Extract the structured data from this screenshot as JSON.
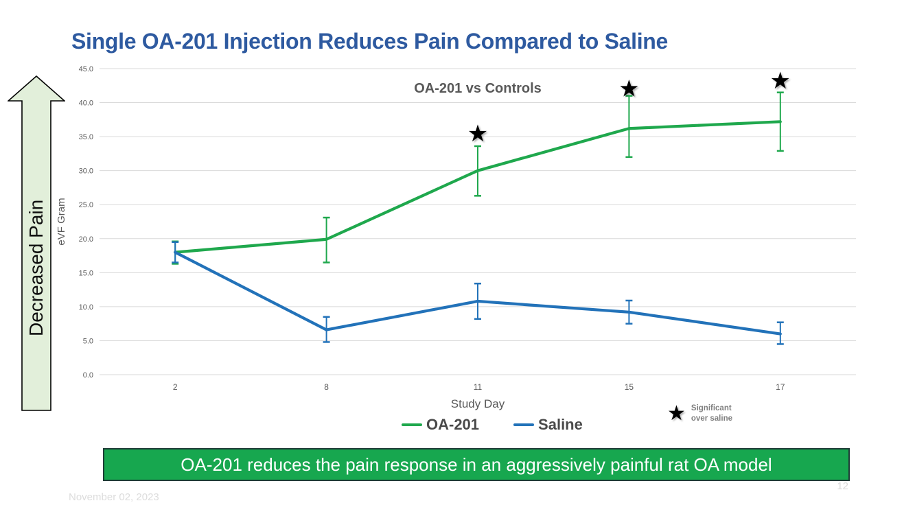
{
  "slide": {
    "title": "Single OA-201 Injection Reduces Pain Compared to Saline",
    "arrow_label": "Decreased Pain",
    "banner_text": "OA-201 reduces the pain response in an aggressively painful rat OA model",
    "date": "November 02, 2023",
    "page_number": "12"
  },
  "colors": {
    "title_text": "#2E5AA0",
    "oa201_green": "#1FA84D",
    "saline_blue": "#2272B9",
    "banner_bg": "#17A74F",
    "banner_border": "#1E3B36",
    "arrow_fill": "#E2EFDA",
    "arrow_border": "#000000",
    "gridline": "#D9D9D9",
    "axis_text": "#595959",
    "legend_text": "#4A4A4A",
    "footer_text": "#DCDCDC",
    "star": "#000000"
  },
  "chart_data": {
    "type": "line",
    "title": "OA-201 vs Controls",
    "xlabel": "Study Day",
    "ylabel": "eVF Gram",
    "categories": [
      2,
      8,
      11,
      15,
      17
    ],
    "ylim": [
      0,
      45
    ],
    "ytick_step": 5,
    "grid": true,
    "legend_position": "bottom",
    "series": [
      {
        "name": "OA-201",
        "color": "#1FA84D",
        "values": [
          18.0,
          19.9,
          30.0,
          36.2,
          37.2
        ],
        "err_low": [
          16.3,
          16.5,
          26.3,
          32.0,
          32.9
        ],
        "err_high": [
          19.6,
          23.1,
          33.6,
          41.0,
          41.5
        ]
      },
      {
        "name": "Saline",
        "color": "#2272B9",
        "values": [
          18.0,
          6.6,
          10.8,
          9.2,
          6.0
        ],
        "err_low": [
          16.5,
          4.8,
          8.2,
          7.5,
          4.5
        ],
        "err_high": [
          19.5,
          8.5,
          13.4,
          10.9,
          7.7
        ]
      }
    ],
    "significance": {
      "marker": "★",
      "days": [
        11,
        15,
        17
      ],
      "marker_y": [
        35.4,
        42.0,
        43.2
      ],
      "label_line1": "Significant",
      "label_line2": "over saline"
    }
  },
  "legend": {
    "items": [
      {
        "label": "OA-201",
        "color": "#1FA84D"
      },
      {
        "label": "Saline",
        "color": "#2272B9"
      }
    ]
  }
}
